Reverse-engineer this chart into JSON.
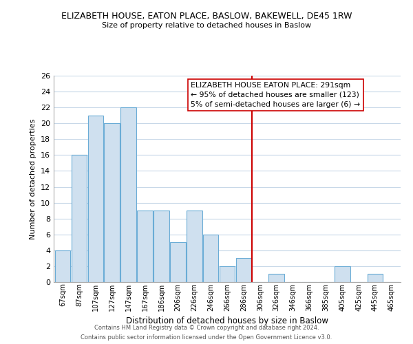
{
  "title": "ELIZABETH HOUSE, EATON PLACE, BASLOW, BAKEWELL, DE45 1RW",
  "subtitle": "Size of property relative to detached houses in Baslow",
  "xlabel": "Distribution of detached houses by size in Baslow",
  "ylabel": "Number of detached properties",
  "bar_labels": [
    "67sqm",
    "87sqm",
    "107sqm",
    "127sqm",
    "147sqm",
    "167sqm",
    "186sqm",
    "206sqm",
    "226sqm",
    "246sqm",
    "266sqm",
    "286sqm",
    "306sqm",
    "326sqm",
    "346sqm",
    "366sqm",
    "385sqm",
    "405sqm",
    "425sqm",
    "445sqm",
    "465sqm"
  ],
  "bar_values": [
    4,
    16,
    21,
    20,
    22,
    9,
    9,
    5,
    9,
    6,
    2,
    3,
    0,
    1,
    0,
    0,
    0,
    2,
    0,
    1,
    0
  ],
  "bar_color": "#cfe0ef",
  "bar_edge_color": "#6aacd6",
  "vline_color": "#cc0000",
  "vline_x": 11.5,
  "annotation_title": "ELIZABETH HOUSE EATON PLACE: 291sqm",
  "annotation_line1": "← 95% of detached houses are smaller (123)",
  "annotation_line2": "5% of semi-detached houses are larger (6) →",
  "annotation_box_color": "#ffffff",
  "annotation_box_edge": "#cc0000",
  "ylim": [
    0,
    26
  ],
  "yticks": [
    0,
    2,
    4,
    6,
    8,
    10,
    12,
    14,
    16,
    18,
    20,
    22,
    24,
    26
  ],
  "footer_line1": "Contains HM Land Registry data © Crown copyright and database right 2024.",
  "footer_line2": "Contains public sector information licensed under the Open Government Licence v3.0.",
  "bg_color": "#ffffff",
  "grid_color": "#c8d8e8"
}
